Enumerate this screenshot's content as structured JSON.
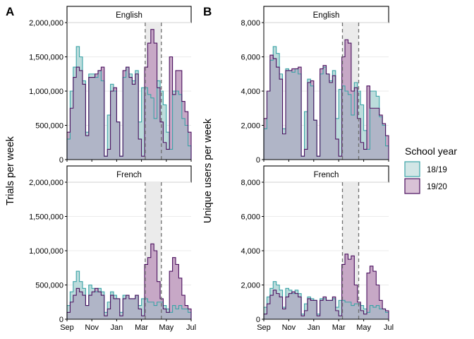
{
  "panels": {
    "A": {
      "letter": "A",
      "ylabel": "Trials per week"
    },
    "B": {
      "letter": "B",
      "ylabel": "Unique users per week"
    }
  },
  "legend": {
    "title": "School year",
    "items": [
      {
        "label": "18/19",
        "fill": "#d2e6e6",
        "stroke": "#3aa3a6"
      },
      {
        "label": "19/20",
        "fill": "#d9c2d6",
        "stroke": "#4a0f5e"
      }
    ]
  },
  "colors": {
    "fill_1819": "#bcdcdc",
    "stroke_1819": "#3aa3a6",
    "fill_1920": "#c7a8c6",
    "stroke_1920": "#4a0f5e",
    "overlap": "#b0b5c7",
    "shade": "#ebebeb",
    "grid": "#ebebeb",
    "vline": "#6e6e6e"
  },
  "chart_data": [
    {
      "type": "area",
      "panel": "A",
      "facet": "English",
      "ylabel": "Trials per week",
      "ylim": [
        0,
        2000000
      ],
      "yticks": [
        0,
        500000,
        1000000,
        1500000,
        2000000
      ],
      "ytick_labels": [
        "0",
        "500,000",
        "1,000,000",
        "1,500,000",
        "2,000,000"
      ],
      "x_tick_labels": [
        "Sep",
        "Nov",
        "Jan",
        "Mar",
        "May",
        "Jul"
      ],
      "x_range_months": [
        0,
        10
      ],
      "shaded_interval_months": [
        6.3,
        7.6
      ],
      "series": [
        {
          "name": "18/19",
          "values": [
            300000,
            1000000,
            1350000,
            1650000,
            1500000,
            1150000,
            400000,
            1250000,
            1250000,
            1200000,
            1300000,
            1150000,
            50000,
            650000,
            1100000,
            1000000,
            550000,
            50000,
            1200000,
            1350000,
            1250000,
            1150000,
            1300000,
            550000,
            1050000,
            1050000,
            950000,
            900000,
            600000,
            1150000,
            1000000,
            800000,
            400000,
            150000,
            1000000,
            1000000,
            950000,
            600000,
            500000,
            200000
          ]
        },
        {
          "name": "19/20",
          "values": [
            400000,
            750000,
            1200000,
            1350000,
            1300000,
            1100000,
            350000,
            1200000,
            1200000,
            1250000,
            1300000,
            1350000,
            50000,
            150000,
            1000000,
            1050000,
            550000,
            50000,
            1300000,
            1350000,
            1200000,
            1100000,
            1250000,
            300000,
            50000,
            1350000,
            1700000,
            1900000,
            1700000,
            1050000,
            550000,
            250000,
            150000,
            1500000,
            950000,
            1300000,
            1300000,
            850000,
            700000,
            400000
          ]
        }
      ]
    },
    {
      "type": "area",
      "panel": "A",
      "facet": "French",
      "ylabel": "Trials per week",
      "ylim": [
        0,
        2000000
      ],
      "yticks": [
        0,
        500000,
        1000000,
        1500000,
        2000000
      ],
      "ytick_labels": [
        "0",
        "500,000",
        "1,000,000",
        "1,500,000",
        "2,000,000"
      ],
      "x_tick_labels": [
        "Sep",
        "Nov",
        "Jan",
        "Mar",
        "May",
        "Jul"
      ],
      "x_range_months": [
        0,
        10
      ],
      "shaded_interval_months": [
        6.3,
        7.6
      ],
      "series": [
        {
          "name": "18/19",
          "values": [
            200000,
            400000,
            550000,
            700000,
            550000,
            450000,
            200000,
            500000,
            450000,
            400000,
            450000,
            400000,
            100000,
            250000,
            400000,
            350000,
            300000,
            100000,
            350000,
            350000,
            300000,
            300000,
            350000,
            200000,
            300000,
            300000,
            250000,
            250000,
            200000,
            250000,
            250000,
            200000,
            150000,
            100000,
            200000,
            150000,
            200000,
            150000,
            150000,
            100000
          ]
        },
        {
          "name": "19/20",
          "values": [
            100000,
            250000,
            350000,
            450000,
            400000,
            350000,
            200000,
            350000,
            400000,
            450000,
            400000,
            350000,
            50000,
            150000,
            350000,
            300000,
            300000,
            50000,
            300000,
            350000,
            300000,
            300000,
            350000,
            150000,
            50000,
            800000,
            900000,
            1100000,
            1000000,
            550000,
            300000,
            150000,
            100000,
            700000,
            900000,
            800000,
            600000,
            350000,
            200000,
            150000
          ]
        }
      ]
    },
    {
      "type": "area",
      "panel": "B",
      "facet": "English",
      "ylabel": "Unique users per week",
      "ylim": [
        0,
        8000
      ],
      "yticks": [
        0,
        2000,
        4000,
        6000,
        8000
      ],
      "ytick_labels": [
        "0",
        "2,000",
        "4,000",
        "6,000",
        "8,000"
      ],
      "x_tick_labels": [
        "Sep",
        "Nov",
        "Jan",
        "Mar",
        "May",
        "Jul"
      ],
      "x_range_months": [
        0,
        10
      ],
      "shaded_interval_months": [
        6.3,
        7.6
      ],
      "series": [
        {
          "name": "18/19",
          "values": [
            1800,
            4000,
            5800,
            6600,
            6200,
            5000,
            1800,
            5300,
            5200,
            5100,
            5300,
            5000,
            200,
            2800,
            4700,
            4300,
            2300,
            200,
            5000,
            5400,
            5000,
            4600,
            5200,
            2400,
            4100,
            4300,
            4000,
            3800,
            2600,
            4500,
            4000,
            3200,
            1700,
            600,
            4000,
            4000,
            3700,
            2500,
            2000,
            800
          ]
        },
        {
          "name": "19/20",
          "values": [
            2400,
            4000,
            6100,
            5900,
            5400,
            4700,
            1500,
            5200,
            5200,
            5300,
            5300,
            5400,
            200,
            600,
            4500,
            4600,
            2300,
            200,
            5300,
            5500,
            5000,
            4500,
            4900,
            1200,
            200,
            6000,
            7000,
            6800,
            4000,
            4200,
            2400,
            1000,
            600,
            4300,
            3000,
            3000,
            3000,
            2600,
            2100,
            1400
          ]
        }
      ]
    },
    {
      "type": "area",
      "panel": "B",
      "facet": "French",
      "ylabel": "Unique users per week",
      "ylim": [
        0,
        8000
      ],
      "yticks": [
        0,
        2000,
        4000,
        6000,
        8000
      ],
      "ytick_labels": [
        "0",
        "2,000",
        "4,000",
        "6,000",
        "8,000"
      ],
      "x_tick_labels": [
        "Sep",
        "Nov",
        "Jan",
        "Mar",
        "May",
        "Jul"
      ],
      "x_range_months": [
        0,
        10
      ],
      "shaded_interval_months": [
        6.3,
        7.6
      ],
      "series": [
        {
          "name": "18/19",
          "values": [
            700,
            1300,
            1800,
            2200,
            2000,
            1700,
            700,
            1800,
            1700,
            1500,
            1700,
            1500,
            300,
            900,
            1300,
            1200,
            1100,
            300,
            1200,
            1200,
            1100,
            1100,
            1200,
            700,
            1100,
            1100,
            1000,
            1000,
            800,
            900,
            900,
            800,
            600,
            400,
            800,
            700,
            800,
            600,
            600,
            400
          ]
        },
        {
          "name": "19/20",
          "values": [
            300,
            900,
            1400,
            1700,
            1500,
            1300,
            600,
            1300,
            1500,
            1600,
            1500,
            1300,
            200,
            500,
            1200,
            1100,
            1100,
            200,
            1100,
            1300,
            1100,
            1100,
            1300,
            500,
            200,
            3200,
            3800,
            3500,
            3700,
            2000,
            1000,
            500,
            300,
            2700,
            3100,
            2800,
            2000,
            1100,
            600,
            500
          ]
        }
      ]
    }
  ]
}
